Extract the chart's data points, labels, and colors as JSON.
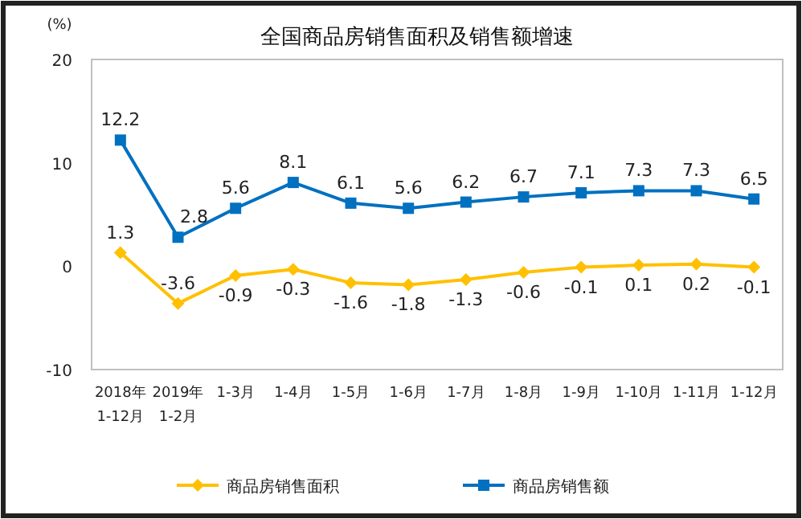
{
  "chart_data": {
    "type": "line",
    "title": "全国商品房销售面积及销售额增速",
    "ylabel": "(%)",
    "categories": [
      "2018年\n1-12月",
      "2019年\n1-2月",
      "1-3月",
      "1-4月",
      "1-5月",
      "1-6月",
      "1-7月",
      "1-8月",
      "1-9月",
      "1-10月",
      "1-11月",
      "1-12月"
    ],
    "series": [
      {
        "name": "商品房销售面积",
        "color": "#ffc000",
        "marker": "diamond",
        "values": [
          1.3,
          -3.6,
          -0.9,
          -0.3,
          -1.6,
          -1.8,
          -1.3,
          -0.6,
          -0.1,
          0.1,
          0.2,
          -0.1
        ]
      },
      {
        "name": "商品房销售额",
        "color": "#0070c0",
        "marker": "square",
        "values": [
          12.2,
          2.8,
          5.6,
          8.1,
          6.1,
          5.6,
          6.2,
          6.7,
          7.1,
          7.3,
          7.3,
          6.5
        ]
      }
    ],
    "ylim": [
      -10,
      20
    ],
    "yticks": [
      -10,
      0,
      10,
      20
    ],
    "grid": false,
    "data_labels": true,
    "legend": "bottom",
    "line_style": "solid"
  }
}
